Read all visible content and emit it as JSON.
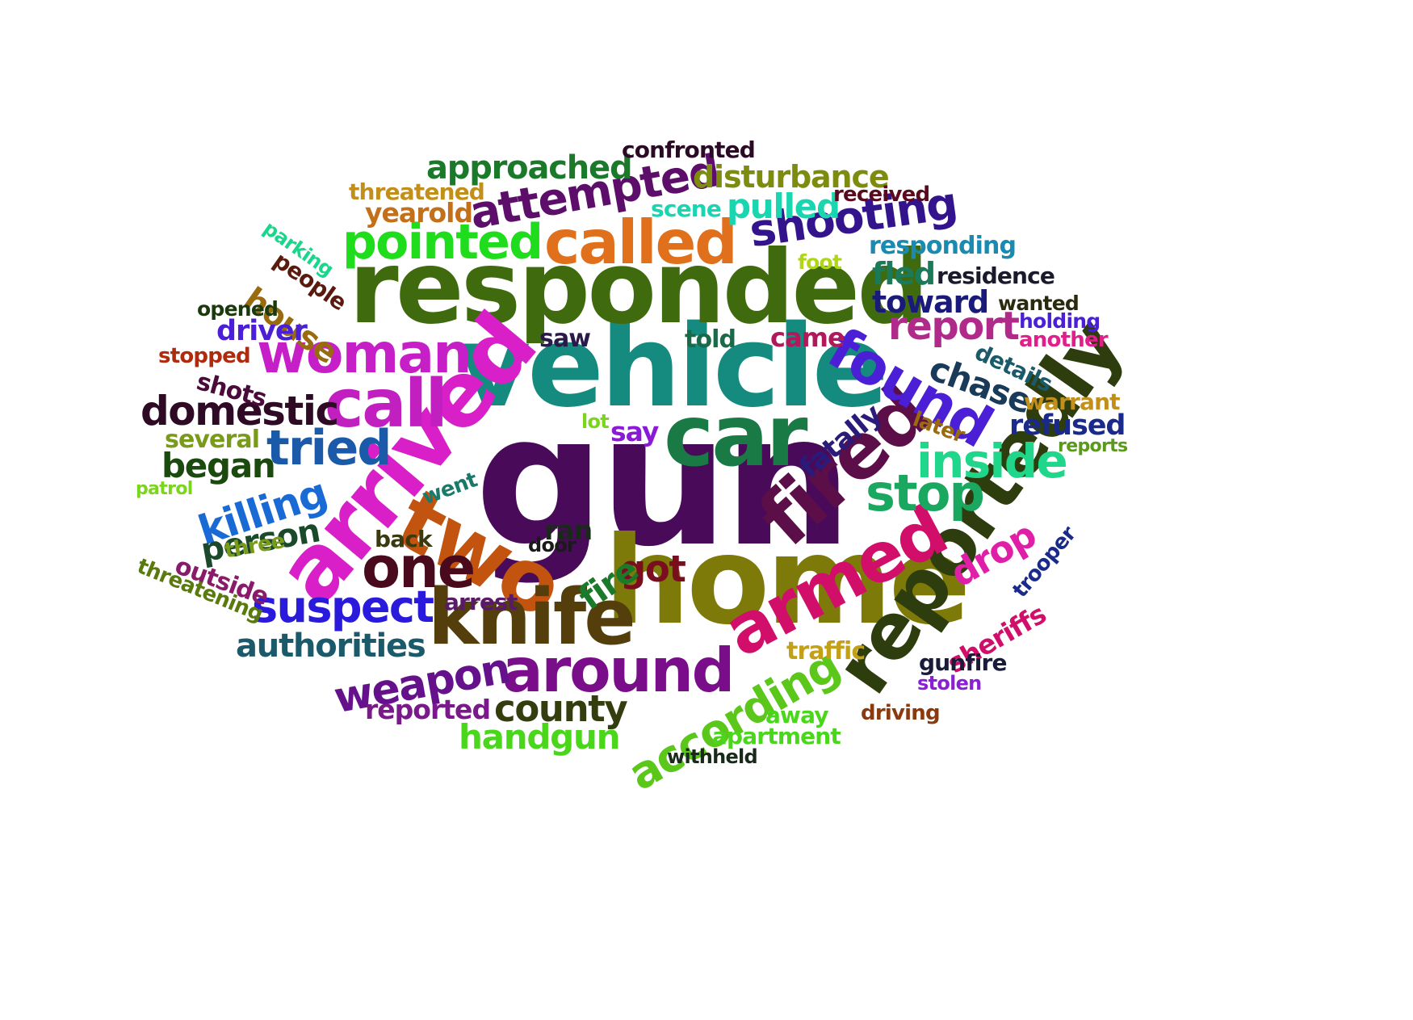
{
  "words": [
    {
      "text": "gun",
      "color": "#4a0a5a"
    },
    {
      "text": "vehicle",
      "color": "#158a7e"
    },
    {
      "text": "responded",
      "color": "#3f6b0e"
    },
    {
      "text": "home",
      "color": "#7d7a0a"
    },
    {
      "text": "car",
      "color": "#1a7a45"
    },
    {
      "text": "arrived",
      "color": "#d81fc8"
    },
    {
      "text": "two",
      "color": "#c2540f"
    },
    {
      "text": "fired",
      "color": "#5c0e48"
    },
    {
      "text": "reportedly",
      "color": "#2e3d0e"
    },
    {
      "text": "armed",
      "color": "#d10f6a"
    },
    {
      "text": "knife",
      "color": "#533e0c"
    },
    {
      "text": "called",
      "color": "#e0701c"
    },
    {
      "text": "call",
      "color": "#c21fc0"
    },
    {
      "text": "found",
      "color": "#4a1fd6"
    },
    {
      "text": "woman",
      "color": "#c71fc7"
    },
    {
      "text": "around",
      "color": "#7a0e8a"
    },
    {
      "text": "pointed",
      "color": "#1fdd1c"
    },
    {
      "text": "one",
      "color": "#4a0a1e"
    },
    {
      "text": "shooting",
      "color": "#33148c"
    },
    {
      "text": "attempted",
      "color": "#5c0e6a"
    },
    {
      "text": "inside",
      "color": "#1fd68a"
    },
    {
      "text": "stop",
      "color": "#1aa860"
    },
    {
      "text": "tried",
      "color": "#1a5aa8"
    },
    {
      "text": "suspect",
      "color": "#2a1adc"
    },
    {
      "text": "killing",
      "color": "#1a6ad6"
    },
    {
      "text": "according",
      "color": "#5ac71a"
    },
    {
      "text": "weapon",
      "color": "#66118c"
    },
    {
      "text": "domestic",
      "color": "#2e0a24"
    },
    {
      "text": "report",
      "color": "#b02a8a"
    },
    {
      "text": "county",
      "color": "#333d0e"
    },
    {
      "text": "authorities",
      "color": "#1a5a6a"
    },
    {
      "text": "approached",
      "color": "#1a7a2a"
    },
    {
      "text": "disturbance",
      "color": "#7d8c0e"
    },
    {
      "text": "pulled",
      "color": "#1ad6b0"
    },
    {
      "text": "handgun",
      "color": "#4ad61a"
    },
    {
      "text": "began",
      "color": "#1a4a0e"
    },
    {
      "text": "person",
      "color": "#1a4a2a"
    },
    {
      "text": "got",
      "color": "#7a0e1e"
    },
    {
      "text": "drop",
      "color": "#e01fa8"
    },
    {
      "text": "chase",
      "color": "#1a3a5a"
    },
    {
      "text": "fire",
      "color": "#1a7a2a"
    },
    {
      "text": "house",
      "color": "#9a6a0e"
    },
    {
      "text": "toward",
      "color": "#1a1a7a"
    },
    {
      "text": "fled",
      "color": "#1a7a5a"
    },
    {
      "text": "fatally",
      "color": "#2a1a7a"
    },
    {
      "text": "driver",
      "color": "#4a1fd6"
    },
    {
      "text": "refused",
      "color": "#1a2a8a"
    },
    {
      "text": "reported",
      "color": "#7a1a8a"
    },
    {
      "text": "responding",
      "color": "#1a8ab0"
    },
    {
      "text": "yearold",
      "color": "#c2701a"
    },
    {
      "text": "sheriffs",
      "color": "#d10f6a"
    },
    {
      "text": "ran",
      "color": "#1a2a1a"
    },
    {
      "text": "outside",
      "color": "#8a1a6a"
    },
    {
      "text": "arrest",
      "color": "#5a1a6a"
    },
    {
      "text": "traffic",
      "color": "#c2a01a"
    },
    {
      "text": "apartment",
      "color": "#4ad61a"
    },
    {
      "text": "confronted",
      "color": "#2a0a24"
    },
    {
      "text": "details",
      "color": "#1a5a6a"
    },
    {
      "text": "shots",
      "color": "#4a0a3a"
    },
    {
      "text": "several",
      "color": "#7a9a1a"
    },
    {
      "text": "threatened",
      "color": "#c2901a"
    },
    {
      "text": "came",
      "color": "#b01a5a"
    },
    {
      "text": "back",
      "color": "#3a3a0e"
    },
    {
      "text": "say",
      "color": "#8a1ad6"
    },
    {
      "text": "away",
      "color": "#4ad61a"
    },
    {
      "text": "told",
      "color": "#1a6a4a"
    },
    {
      "text": "saw",
      "color": "#2a1a4a"
    },
    {
      "text": "gunfire",
      "color": "#1a1a3a"
    },
    {
      "text": "went",
      "color": "#1a7a6a"
    },
    {
      "text": "scene",
      "color": "#1ad6b0"
    },
    {
      "text": "received",
      "color": "#5a0a1e"
    },
    {
      "text": "residence",
      "color": "#1a1a2a"
    },
    {
      "text": "people",
      "color": "#5a1a0e"
    },
    {
      "text": "warrant",
      "color": "#c2901a"
    },
    {
      "text": "three",
      "color": "#7a9a1a"
    },
    {
      "text": "later",
      "color": "#9a6a0e"
    },
    {
      "text": "driving",
      "color": "#8a3a0e"
    },
    {
      "text": "trooper",
      "color": "#1a2a8a"
    },
    {
      "text": "threatening",
      "color": "#5a7a0e"
    },
    {
      "text": "opened",
      "color": "#1a3a0e"
    },
    {
      "text": "stopped",
      "color": "#b02a0e"
    },
    {
      "text": "another",
      "color": "#e01f8a"
    },
    {
      "text": "wanted",
      "color": "#2a2a0e"
    },
    {
      "text": "holding",
      "color": "#4a1fd6"
    },
    {
      "text": "parking",
      "color": "#1ad68a"
    },
    {
      "text": "withheld",
      "color": "#1a2a1a"
    },
    {
      "text": "door",
      "color": "#1a1a1a"
    },
    {
      "text": "foot",
      "color": "#b0d61a"
    },
    {
      "text": "lot",
      "color": "#7ad61a"
    },
    {
      "text": "stolen",
      "color": "#8a1fd6"
    },
    {
      "text": "reports",
      "color": "#5a9a1a"
    },
    {
      "text": "patrol",
      "color": "#7ad61a"
    }
  ]
}
